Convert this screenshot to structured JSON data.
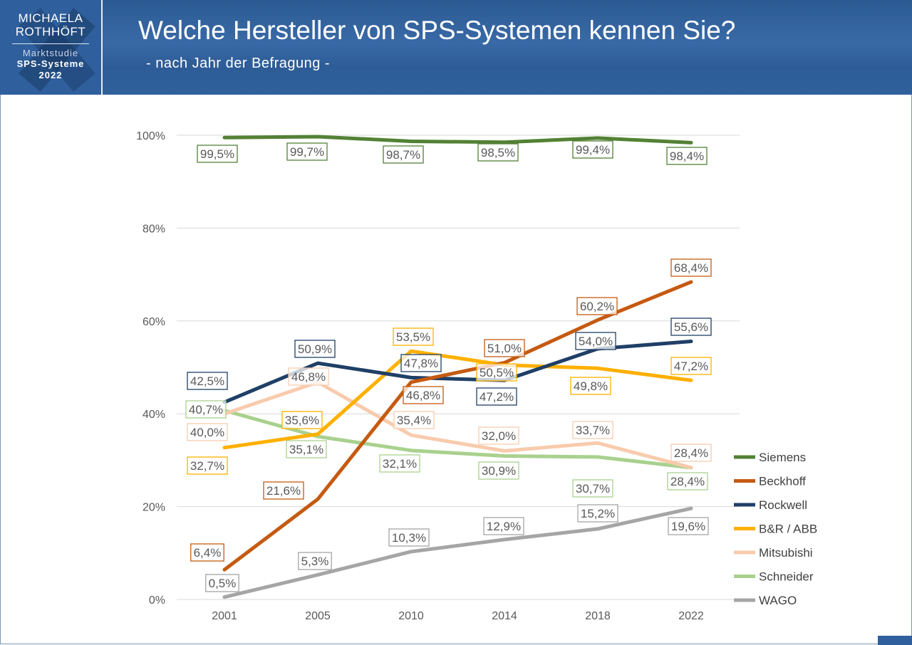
{
  "header": {
    "logo_name_1": "MICHAELA",
    "logo_name_2": "ROTHHÖFT",
    "logo_study": "Marktstudie",
    "logo_topic": "SPS-Systeme",
    "logo_year": "2022",
    "title": "Welche Hersteller von SPS-Systemen kennen Sie?",
    "subtitle": "- nach Jahr der Befragung -"
  },
  "chart_data": {
    "type": "line",
    "title": "Welche Hersteller von SPS-Systemen kennen Sie?",
    "subtitle": "- nach Jahr der Befragung -",
    "categories": [
      "2001",
      "2005",
      "2010",
      "2014",
      "2018",
      "2022"
    ],
    "ylim": [
      0,
      100
    ],
    "yticks": [
      "0%",
      "20%",
      "40%",
      "60%",
      "80%",
      "100%"
    ],
    "ytick_values": [
      0,
      20,
      40,
      60,
      80,
      100
    ],
    "grid": true,
    "legend": "right",
    "series": [
      {
        "name": "Siemens",
        "color": "#538135",
        "values": [
          99.5,
          99.7,
          98.7,
          98.5,
          99.4,
          98.4
        ],
        "labels": [
          "99,5%",
          "99,7%",
          "98,7%",
          "98,5%",
          "99,4%",
          "98,4%"
        ]
      },
      {
        "name": "Beckhoff",
        "color": "#c55a11",
        "values": [
          6.4,
          21.6,
          46.8,
          51.0,
          60.2,
          68.4
        ],
        "labels": [
          "6,4%",
          "21,6%",
          "46,8%",
          "51,0%",
          "60,2%",
          "68,4%"
        ]
      },
      {
        "name": "Rockwell",
        "color": "#1f3f66",
        "values": [
          42.5,
          50.9,
          47.8,
          47.2,
          54.0,
          55.6
        ],
        "labels": [
          "42,5%",
          "50,9%",
          "47,8%",
          "47,2%",
          "54,0%",
          "55,6%"
        ]
      },
      {
        "name": "B&R / ABB",
        "color": "#ffb000",
        "values": [
          32.7,
          35.6,
          53.5,
          50.5,
          49.8,
          47.2
        ],
        "labels": [
          "32,7%",
          "35,6%",
          "53,5%",
          "50,5%",
          "49,8%",
          "47,2%"
        ]
      },
      {
        "name": "Mitsubishi",
        "color": "#f8cbad",
        "values": [
          40.0,
          46.8,
          35.4,
          32.0,
          33.7,
          28.4
        ],
        "labels": [
          "40,0%",
          "46,8%",
          "35,4%",
          "32,0%",
          "33,7%",
          "28,4%"
        ]
      },
      {
        "name": "Schneider",
        "color": "#a9d18e",
        "values": [
          40.7,
          35.1,
          32.1,
          30.9,
          30.7,
          28.4
        ],
        "labels": [
          "40,7%",
          "35,1%",
          "32,1%",
          "30,9%",
          "30,7%",
          "28,4%"
        ]
      },
      {
        "name": "WAGO",
        "color": "#a5a5a5",
        "values": [
          0.5,
          5.3,
          10.3,
          12.9,
          15.2,
          19.6
        ],
        "labels": [
          "0,5%",
          "5,3%",
          "10,3%",
          "12,9%",
          "15,2%",
          "19,6%"
        ]
      }
    ]
  }
}
